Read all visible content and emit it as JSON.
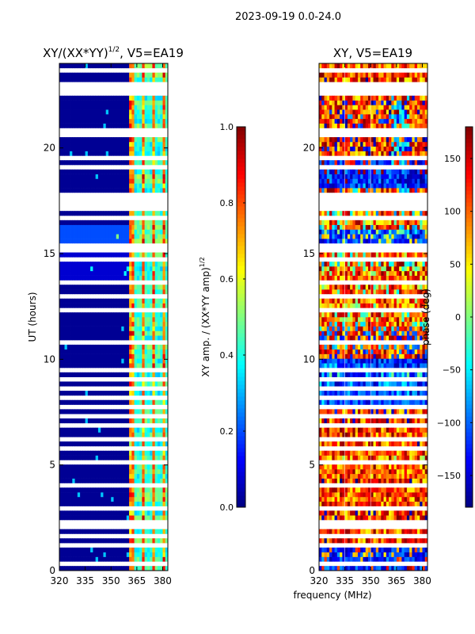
{
  "figure_title": "2023-09-19 0.0-24.0",
  "colors": {
    "jet": [
      "#000080",
      "#0000ff",
      "#0080ff",
      "#00ffff",
      "#80ff80",
      "#ffff00",
      "#ff8000",
      "#ff0000",
      "#800000"
    ],
    "gap": "#ffffff"
  },
  "chart_data": [
    {
      "type": "heatmap",
      "title": "XY/(XX*YY)^1/2, V5=EA19",
      "title_main": "XY/(XX*YY)",
      "title_sup": "1/2",
      "title_tail": ", V5=EA19",
      "xlabel": "",
      "ylabel": "UT (hours)",
      "xlim": [
        320,
        383
      ],
      "ylim": [
        0,
        24
      ],
      "xticks": [
        320,
        335,
        350,
        365,
        380
      ],
      "yticks": [
        0,
        5,
        10,
        15,
        20
      ],
      "colorbar": {
        "label": "XY amp. / (XX*YY amp)^1/2",
        "label_main": "XY amp. / (XX*YY amp)",
        "label_sup": "1/2",
        "range": [
          0.0,
          1.0
        ],
        "ticks": [
          "0.0",
          "0.2",
          "0.4",
          "0.6",
          "0.8",
          "1.0"
        ],
        "tick_values": [
          0.0,
          0.2,
          0.4,
          0.6,
          0.8,
          1.0
        ]
      },
      "description_of_values": "mostly ~0 below 360 MHz; ~0.3-0.6 between 360 and 383 MHz with bright vertical channels near 362, 369, 375 and 381 MHz"
    },
    {
      "type": "heatmap",
      "title": "XY, V5=EA19",
      "xlabel": "frequency (MHz)",
      "ylabel": "",
      "xlim": [
        320,
        383
      ],
      "ylim": [
        0,
        24
      ],
      "xticks": [
        320,
        335,
        350,
        365,
        380
      ],
      "yticks": [
        0,
        5,
        10,
        15,
        20
      ],
      "colorbar": {
        "label": "phase (deg)",
        "range": [
          -180,
          180
        ],
        "ticks": [
          "−150",
          "−100",
          "−50",
          "0",
          "50",
          "100",
          "150"
        ],
        "tick_values": [
          -150,
          -100,
          -50,
          0,
          50,
          100,
          150
        ]
      },
      "description_of_values": "phase mostly +50 to +180 deg across band with blue (-100 to -150 deg) patches; white horizontal gaps where data flagged"
    }
  ],
  "gap_hours": [
    0.35,
    1.2,
    1.6,
    2.05,
    2.3,
    2.9,
    3.5,
    4.1,
    4.6,
    5.2,
    5.7,
    6.3,
    6.85,
    7.3,
    7.75,
    8.2,
    8.6,
    9.1,
    9.5,
    10.25,
    10.8,
    11.55,
    12.3,
    13.05,
    13.7,
    14.2,
    14.75,
    15.25,
    15.35,
    16.7,
    17.2,
    17.35,
    17.55,
    17.75,
    17.85,
    18.55,
    19.05,
    19.55,
    20.6,
    20.75,
    21.15,
    21.6,
    22.05,
    22.6,
    22.85,
    23.05,
    23.35,
    23.6
  ]
}
